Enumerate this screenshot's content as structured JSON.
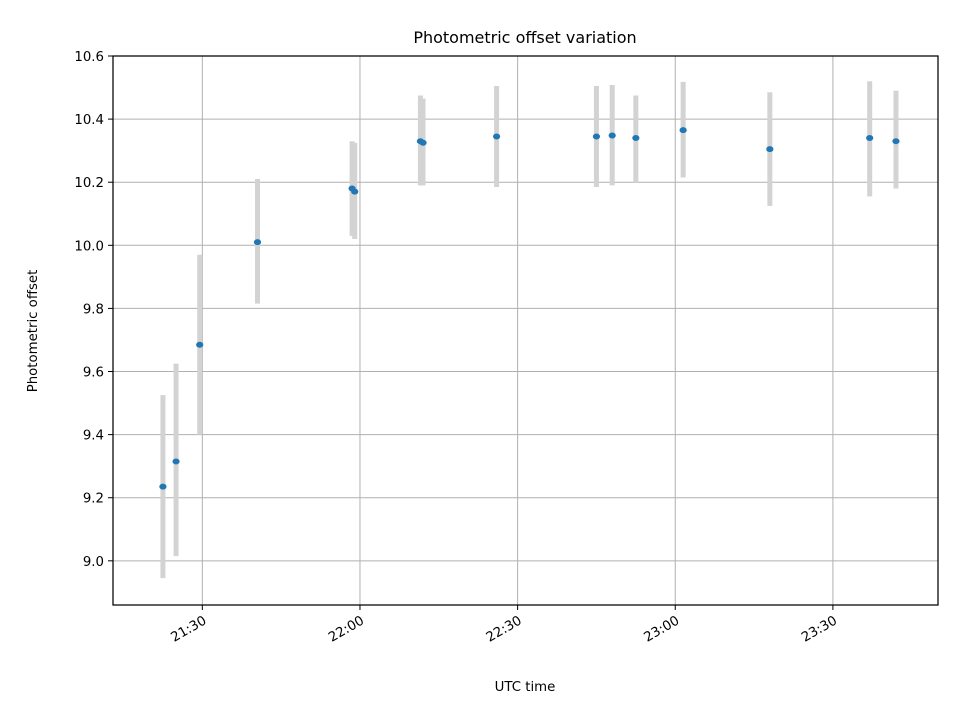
{
  "chart_data": {
    "type": "scatter",
    "title": "Photometric offset variation",
    "xlabel": "UTC time",
    "ylabel": "Photometric offset",
    "x_unit": "UTC HH:MM",
    "xlim": [
      "21:13",
      "23:50"
    ],
    "ylim": [
      8.86,
      10.6
    ],
    "x_ticks": [
      "21:30",
      "22:00",
      "22:30",
      "23:00",
      "23:30"
    ],
    "y_ticks": [
      "9.0",
      "9.2",
      "9.4",
      "9.6",
      "9.8",
      "10.0",
      "10.2",
      "10.4",
      "10.6"
    ],
    "grid": true,
    "colors": {
      "points": "#1f77b4",
      "error_bars": "#d3d3d3",
      "grid": "#b0b0b0",
      "axes": "#000000"
    },
    "series": [
      {
        "marker": "point",
        "points": [
          {
            "x": "21:22.5",
            "y": 9.235,
            "ylow": 8.945,
            "yhigh": 9.525
          },
          {
            "x": "21:25.0",
            "y": 9.315,
            "ylow": 9.015,
            "yhigh": 9.625
          },
          {
            "x": "21:29.5",
            "y": 9.685,
            "ylow": 9.4,
            "yhigh": 9.97
          },
          {
            "x": "21:40.5",
            "y": 10.01,
            "ylow": 9.815,
            "yhigh": 10.21
          },
          {
            "x": "21:58.5",
            "y": 10.18,
            "ylow": 10.03,
            "yhigh": 10.33
          },
          {
            "x": "21:59.0",
            "y": 10.17,
            "ylow": 10.02,
            "yhigh": 10.325
          },
          {
            "x": "22:11.5",
            "y": 10.33,
            "ylow": 10.19,
            "yhigh": 10.475
          },
          {
            "x": "22:12.0",
            "y": 10.325,
            "ylow": 10.19,
            "yhigh": 10.465
          },
          {
            "x": "22:26.0",
            "y": 10.345,
            "ylow": 10.185,
            "yhigh": 10.505
          },
          {
            "x": "22:45.0",
            "y": 10.345,
            "ylow": 10.185,
            "yhigh": 10.505
          },
          {
            "x": "22:48.0",
            "y": 10.348,
            "ylow": 10.19,
            "yhigh": 10.508
          },
          {
            "x": "22:52.5",
            "y": 10.34,
            "ylow": 10.2,
            "yhigh": 10.475
          },
          {
            "x": "23:01.5",
            "y": 10.365,
            "ylow": 10.215,
            "yhigh": 10.518
          },
          {
            "x": "23:18.0",
            "y": 10.305,
            "ylow": 10.125,
            "yhigh": 10.485
          },
          {
            "x": "23:37.0",
            "y": 10.34,
            "ylow": 10.155,
            "yhigh": 10.52
          },
          {
            "x": "23:42.0",
            "y": 10.33,
            "ylow": 10.18,
            "yhigh": 10.49
          }
        ]
      }
    ]
  }
}
